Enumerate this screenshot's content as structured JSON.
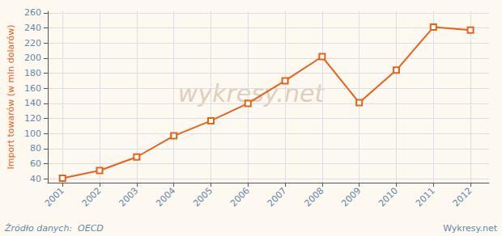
{
  "chart_data": {
    "type": "line",
    "x": [
      2001,
      2002,
      2003,
      2004,
      2005,
      2006,
      2007,
      2008,
      2009,
      2010,
      2011,
      2012
    ],
    "values": [
      41,
      51,
      69,
      97,
      117,
      140,
      170,
      202,
      141,
      184,
      241,
      237
    ],
    "color": "#E8621A",
    "marker": "square",
    "ylabel": "Import towarów (w mln dolarów)",
    "ylim": [
      35,
      262
    ],
    "yticks": [
      40,
      60,
      80,
      100,
      120,
      140,
      160,
      180,
      200,
      220,
      240,
      260
    ],
    "xlim": [
      2000.6,
      2012.5
    ],
    "xticks": [
      2001,
      2002,
      2003,
      2004,
      2005,
      2006,
      2007,
      2008,
      2009,
      2010,
      2011,
      2012
    ],
    "grid": true,
    "annotations": [
      "wykresy.net",
      "Źródło danych:  OECD",
      "Wykresy.net"
    ]
  }
}
